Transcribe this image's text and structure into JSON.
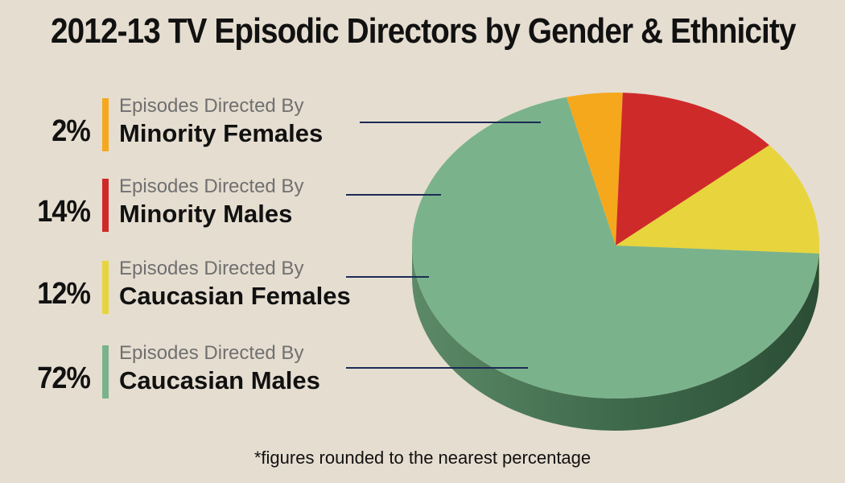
{
  "chart_data": {
    "type": "pie",
    "title": "2012-13 TV Episodic Directors by Gender & Ethnicity",
    "slices": [
      {
        "percent_label": "2%",
        "value": 2,
        "prefix": "Episodes Directed By",
        "label": "Minority Females",
        "color": "#f5a81c"
      },
      {
        "percent_label": "14%",
        "value": 14,
        "prefix": "Episodes Directed By",
        "label": "Minority Males",
        "color": "#cf2a2a"
      },
      {
        "percent_label": "12%",
        "value": 12,
        "prefix": "Episodes Directed By",
        "label": "Caucasian Females",
        "color": "#e8d43c"
      },
      {
        "percent_label": "72%",
        "value": 72,
        "prefix": "Episodes Directed By",
        "label": "Caucasian Males",
        "color": "#7ab38b"
      }
    ],
    "footnote": "*figures rounded to the nearest percentage"
  }
}
